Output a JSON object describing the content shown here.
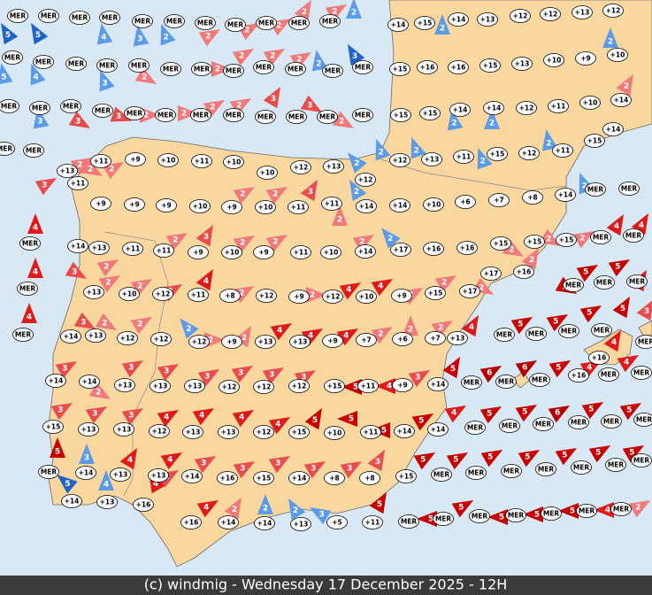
{
  "stations": [
    "MER",
    "MER",
    "MER",
    "MER",
    "MER",
    "MER",
    "MER",
    "MER",
    "MER",
    "MER",
    "MER",
    "+14",
    "+15",
    "+14",
    "+13",
    "+12",
    "+12",
    "+13",
    "+12",
    "MER",
    "MER",
    "MER",
    "MER",
    "MER",
    "MER",
    "MER",
    "MER",
    "MER",
    "MER",
    "MER",
    "MER",
    "+15",
    "+16",
    "+16",
    "+15",
    "+13",
    "+10",
    "+9",
    "+10",
    "MER",
    "MER",
    "MER",
    "MER",
    "MER",
    "MER",
    "MER",
    "MER",
    "MER",
    "MER",
    "MER",
    "MER",
    "+15",
    "+15",
    "+14",
    "+14",
    "+12",
    "+11",
    "+10",
    "+14",
    "MER",
    "MER",
    "+13",
    "+11",
    "+9",
    "+10",
    "+11",
    "+10",
    "+10",
    "+12",
    "+13",
    "+12",
    "+12",
    "+13",
    "+11",
    "+15",
    "+12",
    "+11",
    "+15",
    "+14",
    "+11",
    "+9",
    "+9",
    "+9",
    "+10",
    "+9",
    "+10",
    "+11",
    "+11",
    "+14",
    "+14",
    "+10",
    "+6",
    "+7",
    "+8",
    "+14",
    "MER",
    "MER",
    "MER",
    "+14",
    "+13",
    "+11",
    "+11",
    "+9",
    "+10",
    "+9",
    "+11",
    "+10",
    "+14",
    "+17",
    "+16",
    "+16",
    "+15",
    "+15",
    "+15",
    "MER",
    "MER",
    "MER",
    "+13",
    "+10",
    "+12",
    "+11",
    "+8",
    "+12",
    "+9",
    "+12",
    "+10",
    "+9",
    "+15",
    "+17",
    "+17",
    "+16",
    "MER",
    "MER",
    "MER",
    "MER",
    "+14",
    "+13",
    "+12",
    "+12",
    "+12",
    "+9",
    "+13",
    "+13",
    "+9",
    "+7",
    "+6",
    "+7",
    "+13",
    "MER",
    "MER",
    "MER",
    "MER",
    "+16",
    "MER",
    "+14",
    "+14",
    "+13",
    "+13",
    "+13",
    "+12",
    "+12",
    "+12",
    "+15",
    "+11",
    "+9",
    "+14",
    "MER",
    "MER",
    "MER",
    "+16",
    "MER",
    "MER",
    "+15",
    "+13",
    "+13",
    "+12",
    "+13",
    "+13",
    "+12",
    "+15",
    "+10",
    "+11",
    "+14",
    "+14",
    "MER",
    "MER",
    "MER",
    "MER",
    "MER",
    "MER",
    "MER",
    "+14",
    "+13",
    "+13",
    "+14",
    "+16",
    "+15",
    "+14",
    "+8",
    "+8",
    "+15",
    "MER",
    "MER",
    "MER",
    "MER",
    "MER",
    "MER",
    "MER",
    "+14",
    "+13",
    "+16",
    "+16",
    "+14",
    "+14",
    "+13",
    "+5",
    "+11",
    "MER",
    "MER",
    "MER",
    "MER",
    "MER",
    "MER",
    "MER"
  ],
  "winds": [
    {
      "f": 5,
      "c": "#1f62c8"
    },
    {
      "f": 5,
      "c": "#1f62c8"
    },
    {
      "f": 4,
      "c": "#5b9be8"
    },
    {
      "f": 3,
      "c": "#5b9be8"
    },
    {
      "f": 2,
      "c": "#5b9be8"
    },
    {
      "f": 2,
      "c": "#5b9be8"
    },
    {
      "f": 2,
      "c": "#5b9be8"
    },
    {
      "f": 2,
      "c": "#5b9be8"
    },
    {
      "f": 3,
      "c": "#1f62c8"
    },
    {
      "f": 4,
      "c": "#5b9be8"
    },
    {
      "f": 3,
      "c": "#5b9be8"
    },
    {
      "f": 5,
      "c": "#5b9be8"
    },
    {
      "f": 3,
      "c": "#5b9be8"
    },
    {
      "f": 2,
      "c": "#5b9be8"
    },
    {
      "f": 2,
      "c": "#5b9be8"
    },
    {
      "f": 2,
      "c": "#5b9be8"
    },
    {
      "f": 2,
      "c": "#5b9be8"
    },
    {
      "f": 2,
      "c": "#5b9be8"
    },
    {
      "f": 2,
      "c": "#5b9be8"
    },
    {
      "f": 2,
      "c": "#5b9be8"
    },
    {
      "f": 2,
      "c": "#5b9be8"
    },
    {
      "f": 2,
      "c": "#5b9be8"
    },
    {
      "f": 2,
      "c": "#5b9be8"
    },
    {
      "f": 2,
      "c": "#5b9be8"
    },
    {
      "f": 2,
      "c": "#5b9be8"
    },
    {
      "f": 2,
      "c": "#5b9be8"
    },
    {
      "f": 2,
      "c": "#5b9be8"
    },
    {
      "f": 3,
      "c": "#5b9be8"
    },
    {
      "f": 3,
      "c": "#5b9be8"
    },
    {
      "f": 4,
      "c": "#5b9be8"
    },
    {
      "f": 5,
      "c": "#1f62c8"
    },
    {
      "f": 2,
      "c": "#f07a7a"
    },
    {
      "f": 2,
      "c": "#f07a7a"
    },
    {
      "f": 2,
      "c": "#f07a7a"
    },
    {
      "f": 2,
      "c": "#f07a7a"
    },
    {
      "f": 2,
      "c": "#f07a7a"
    },
    {
      "f": 2,
      "c": "#f07a7a"
    },
    {
      "f": 2,
      "c": "#f07a7a"
    },
    {
      "f": 2,
      "c": "#f07a7a"
    },
    {
      "f": 2,
      "c": "#f07a7a"
    },
    {
      "f": 2,
      "c": "#f07a7a"
    },
    {
      "f": 3,
      "c": "#e84c4c"
    },
    {
      "f": 3,
      "c": "#e84c4c"
    },
    {
      "f": 2,
      "c": "#f07a7a"
    },
    {
      "f": 2,
      "c": "#f07a7a"
    },
    {
      "f": 2,
      "c": "#f07a7a"
    },
    {
      "f": 2,
      "c": "#f07a7a"
    },
    {
      "f": 3,
      "c": "#e84c4c"
    },
    {
      "f": 3,
      "c": "#e84c4c"
    },
    {
      "f": 2,
      "c": "#f07a7a"
    },
    {
      "f": 2,
      "c": "#f07a7a"
    },
    {
      "f": 3,
      "c": "#e84c4c"
    },
    {
      "f": 2,
      "c": "#f07a7a"
    },
    {
      "f": 2,
      "c": "#f07a7a"
    },
    {
      "f": 2,
      "c": "#f07a7a"
    },
    {
      "f": 4,
      "c": "#e01a1a"
    },
    {
      "f": 4,
      "c": "#e01a1a"
    },
    {
      "f": 4,
      "c": "#e01a1a"
    },
    {
      "f": 2,
      "c": "#f07a7a"
    },
    {
      "f": 2,
      "c": "#f07a7a"
    },
    {
      "f": 3,
      "c": "#e84c4c"
    },
    {
      "f": 2,
      "c": "#f07a7a"
    },
    {
      "f": 3,
      "c": "#e84c4c"
    },
    {
      "f": 2,
      "c": "#f07a7a"
    },
    {
      "f": 2,
      "c": "#f07a7a"
    },
    {
      "f": 3,
      "c": "#e84c4c"
    },
    {
      "f": 2,
      "c": "#f07a7a"
    },
    {
      "f": 2,
      "c": "#f07a7a"
    },
    {
      "f": 2,
      "c": "#f07a7a"
    },
    {
      "f": 2,
      "c": "#f07a7a"
    },
    {
      "f": 2,
      "c": "#f07a7a"
    },
    {
      "f": 2,
      "c": "#f07a7a"
    },
    {
      "f": 2,
      "c": "#f07a7a"
    },
    {
      "f": 4,
      "c": "#e01a1a"
    },
    {
      "f": 4,
      "c": "#e01a1a"
    },
    {
      "f": 2,
      "c": "#f07a7a"
    },
    {
      "f": 2,
      "c": "#f07a7a"
    },
    {
      "f": 3,
      "c": "#e84c4c"
    },
    {
      "f": 4,
      "c": "#e01a1a"
    },
    {
      "f": 2,
      "c": "#f07a7a"
    },
    {
      "f": 2,
      "c": "#f07a7a"
    },
    {
      "f": 4,
      "c": "#e01a1a"
    },
    {
      "f": 4,
      "c": "#e01a1a"
    },
    {
      "f": 2,
      "c": "#f07a7a"
    },
    {
      "f": 2,
      "c": "#f07a7a"
    },
    {
      "f": 2,
      "c": "#f07a7a"
    },
    {
      "f": 5,
      "c": "#c80000"
    },
    {
      "f": 5,
      "c": "#c80000"
    },
    {
      "f": 4,
      "c": "#e01a1a"
    },
    {
      "f": 5,
      "c": "#c80000"
    },
    {
      "f": 3,
      "c": "#e84c4c"
    },
    {
      "f": 2,
      "c": "#f07a7a"
    },
    {
      "f": 2,
      "c": "#f07a7a"
    },
    {
      "f": 2,
      "c": "#f07a7a"
    },
    {
      "f": 2,
      "c": "#f07a7a"
    },
    {
      "f": 4,
      "c": "#e01a1a"
    },
    {
      "f": 4,
      "c": "#e01a1a"
    },
    {
      "f": 4,
      "c": "#e01a1a"
    },
    {
      "f": 2,
      "c": "#f07a7a"
    },
    {
      "f": 2,
      "c": "#f07a7a"
    },
    {
      "f": 2,
      "c": "#f07a7a"
    },
    {
      "f": 4,
      "c": "#e01a1a"
    },
    {
      "f": 5,
      "c": "#c80000"
    },
    {
      "f": 5,
      "c": "#c80000"
    },
    {
      "f": 5,
      "c": "#c80000"
    },
    {
      "f": 5,
      "c": "#c80000"
    },
    {
      "f": 4,
      "c": "#e01a1a"
    },
    {
      "f": 3,
      "c": "#e84c4c"
    },
    {
      "f": 3,
      "c": "#e84c4c"
    },
    {
      "f": 2,
      "c": "#f07a7a"
    },
    {
      "f": 3,
      "c": "#e84c4c"
    },
    {
      "f": 3,
      "c": "#e84c4c"
    },
    {
      "f": 3,
      "c": "#e84c4c"
    },
    {
      "f": 3,
      "c": "#e84c4c"
    },
    {
      "f": 3,
      "c": "#e84c4c"
    },
    {
      "f": 3,
      "c": "#e84c4c"
    },
    {
      "f": 5,
      "c": "#c80000"
    },
    {
      "f": 4,
      "c": "#e01a1a"
    },
    {
      "f": 3,
      "c": "#e84c4c"
    },
    {
      "f": 5,
      "c": "#c80000"
    },
    {
      "f": 6,
      "c": "#b40000"
    },
    {
      "f": 6,
      "c": "#b40000"
    },
    {
      "f": 5,
      "c": "#c80000"
    },
    {
      "f": 4,
      "c": "#e01a1a"
    },
    {
      "f": 4,
      "c": "#e01a1a"
    },
    {
      "f": 3,
      "c": "#e84c4c"
    },
    {
      "f": 3,
      "c": "#e84c4c"
    },
    {
      "f": 3,
      "c": "#e84c4c"
    },
    {
      "f": 4,
      "c": "#e01a1a"
    },
    {
      "f": 4,
      "c": "#e01a1a"
    },
    {
      "f": 4,
      "c": "#e01a1a"
    },
    {
      "f": 4,
      "c": "#e01a1a"
    },
    {
      "f": 5,
      "c": "#c80000"
    },
    {
      "f": 5,
      "c": "#c80000"
    },
    {
      "f": 5,
      "c": "#c80000"
    },
    {
      "f": 5,
      "c": "#c80000"
    },
    {
      "f": 4,
      "c": "#e01a1a"
    },
    {
      "f": 5,
      "c": "#c80000"
    },
    {
      "f": 5,
      "c": "#c80000"
    },
    {
      "f": 6,
      "c": "#b40000"
    },
    {
      "f": 5,
      "c": "#c80000"
    },
    {
      "f": 5,
      "c": "#c80000"
    },
    {
      "f": 5,
      "c": "#c80000"
    },
    {
      "f": 4,
      "c": "#e01a1a"
    },
    {
      "f": 4,
      "c": "#e01a1a"
    },
    {
      "f": 3,
      "c": "#e84c4c"
    },
    {
      "f": 3,
      "c": "#e84c4c"
    },
    {
      "f": 3,
      "c": "#e84c4c"
    },
    {
      "f": 3,
      "c": "#e84c4c"
    },
    {
      "f": 3,
      "c": "#e84c4c"
    },
    {
      "f": 3,
      "c": "#e84c4c"
    },
    {
      "f": 5,
      "c": "#c80000"
    },
    {
      "f": 5,
      "c": "#c80000"
    },
    {
      "f": 5,
      "c": "#c80000"
    },
    {
      "f": 5,
      "c": "#c80000"
    },
    {
      "f": 5,
      "c": "#c80000"
    },
    {
      "f": 5,
      "c": "#c80000"
    },
    {
      "f": 5,
      "c": "#c80000"
    },
    {
      "f": 4,
      "c": "#e01a1a"
    },
    {
      "f": 3,
      "c": "#e84c4c"
    },
    {
      "f": 4,
      "c": "#e01a1a"
    },
    {
      "f": 2,
      "c": "#f07a7a"
    },
    {
      "f": 5,
      "c": "#c80000"
    },
    {
      "f": 5,
      "c": "#c80000"
    },
    {
      "f": 5,
      "c": "#c80000"
    },
    {
      "f": 5,
      "c": "#c80000"
    },
    {
      "f": 5,
      "c": "#c80000"
    },
    {
      "f": 5,
      "c": "#c80000"
    },
    {
      "f": 4,
      "c": "#e01a1a"
    },
    {
      "f": 2,
      "c": "#f07a7a"
    }
  ],
  "footer": "(c) windmig - Wednesday 17 December 2025 - 12H"
}
